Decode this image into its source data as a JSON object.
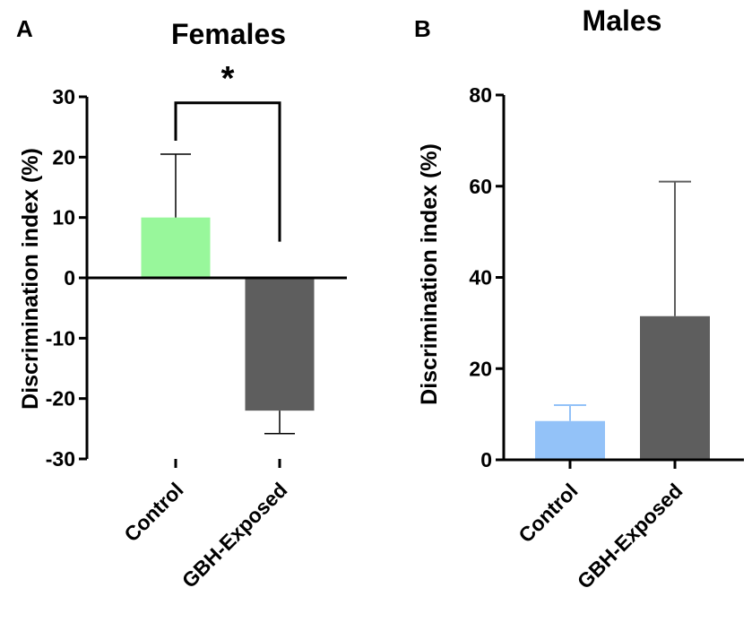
{
  "chart_data": [
    {
      "type": "bar",
      "panel": "A",
      "title": "Females",
      "xlabel": "",
      "ylabel": "Discrimination index (%)",
      "ylim": [
        -30,
        30
      ],
      "yticks": [
        30,
        20,
        10,
        0,
        -10,
        -20,
        -30
      ],
      "yticks_labels": [
        "30",
        "20",
        "10",
        "0",
        "-10",
        "-20",
        "-30"
      ],
      "categories": [
        "Control",
        "GBH-Exposed"
      ],
      "values": [
        10,
        -22
      ],
      "errors_upper": [
        20.5,
        -22
      ],
      "errors_lower": [
        10,
        -25.8
      ],
      "colors": [
        "#98f79b",
        "#5e5e5e"
      ],
      "error_color": "#000000",
      "significance": {
        "between": [
          0,
          1
        ],
        "label": "*",
        "left_y": 20.5,
        "right_y": 6,
        "top_y": 29
      }
    },
    {
      "type": "bar",
      "panel": "B",
      "title": "Males",
      "xlabel": "",
      "ylabel": "Discrimination index (%)",
      "ylim": [
        0,
        80
      ],
      "yticks": [
        80,
        60,
        40,
        20,
        0
      ],
      "yticks_labels": [
        "80",
        "60",
        "40",
        "20",
        "0"
      ],
      "categories": [
        "Control",
        "GBH-Exposed"
      ],
      "values": [
        8.5,
        31.5
      ],
      "errors_upper": [
        12,
        61
      ],
      "errors_lower": [
        8.5,
        31.5
      ],
      "colors": [
        "#93c2f8",
        "#5e5e5e"
      ],
      "error_colors": [
        "#93c2f8",
        "#5e5e5e"
      ]
    }
  ]
}
